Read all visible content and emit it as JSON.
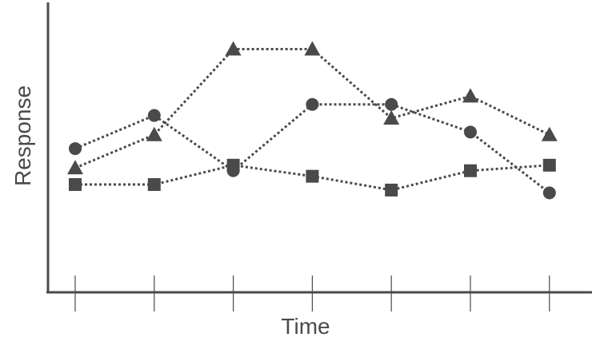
{
  "chart_data": {
    "type": "line",
    "title": "",
    "xlabel": "Time",
    "ylabel": "Response",
    "x": [
      1,
      2,
      3,
      4,
      5,
      6,
      7
    ],
    "xticks_labeled": false,
    "yticks_labeled": false,
    "ylim": [
      0,
      10
    ],
    "grid": false,
    "legend": "none",
    "line_style": "dotted",
    "marker_color": "#4a4a4a",
    "series": [
      {
        "marker": "circle",
        "values": [
          5.2,
          6.4,
          4.4,
          6.8,
          6.8,
          5.8,
          3.6
        ]
      },
      {
        "marker": "triangle",
        "values": [
          4.5,
          5.7,
          8.8,
          8.8,
          6.3,
          7.1,
          5.7
        ]
      },
      {
        "marker": "square",
        "values": [
          3.9,
          3.9,
          4.6,
          4.2,
          3.7,
          4.4,
          4.6
        ]
      }
    ]
  }
}
